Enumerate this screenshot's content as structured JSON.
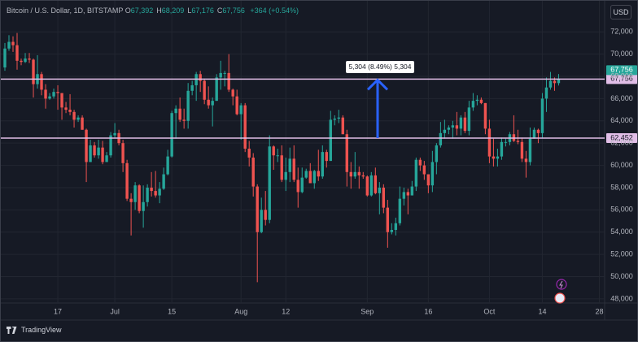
{
  "header": {
    "symbol": "Bitcoin / U.S. Dollar, 1D, BITSTAMP",
    "ohlc": [
      {
        "key": "O",
        "value": "67,392"
      },
      {
        "key": "H",
        "value": "68,209"
      },
      {
        "key": "L",
        "value": "67,176"
      },
      {
        "key": "C",
        "value": "67,756"
      }
    ],
    "change": "+364 (+0.54%)",
    "currency": "USD"
  },
  "footer": {
    "brand": "TradingView"
  },
  "chart_data": {
    "type": "candlestick",
    "up_color": "#26a69a",
    "down_color": "#ef5350",
    "grid": true,
    "xlim": [
      -1,
      147.3
    ],
    "ylim": [
      47630,
      74790
    ],
    "xticks": [
      {
        "value": 13,
        "label": "17"
      },
      {
        "value": 27,
        "label": "Jul"
      },
      {
        "value": 41,
        "label": "15"
      },
      {
        "value": 58,
        "label": "Aug"
      },
      {
        "value": 69,
        "label": "12"
      },
      {
        "value": 89,
        "label": "Sep"
      },
      {
        "value": 104,
        "label": "16"
      },
      {
        "value": 119,
        "label": "Oct"
      },
      {
        "value": 132,
        "label": "14"
      },
      {
        "value": 146,
        "label": "28"
      }
    ],
    "yticks": [
      {
        "value": 48000,
        "label": "48,000"
      },
      {
        "value": 50000,
        "label": "50,000"
      },
      {
        "value": 52000,
        "label": "52,000"
      },
      {
        "value": 54000,
        "label": "54,000"
      },
      {
        "value": 56000,
        "label": "56,000"
      },
      {
        "value": 58000,
        "label": "58,000"
      },
      {
        "value": 60000,
        "label": "60,000"
      },
      {
        "value": 62000,
        "label": "62,000"
      },
      {
        "value": 64000,
        "label": "64,000"
      },
      {
        "value": 66000,
        "label": "66,000"
      },
      {
        "value": 68000,
        "label": "68,000"
      },
      {
        "value": 70000,
        "label": "70,000"
      },
      {
        "value": 72000,
        "label": "72,000"
      }
    ],
    "open": [
      68800,
      70500,
      71100,
      70800,
      69400,
      69300,
      69600,
      69500,
      67300,
      68200,
      66800,
      66000,
      66200,
      66600,
      66500,
      65200,
      65000,
      64800,
      64100,
      64300,
      63200,
      60300,
      61800,
      60900,
      61600,
      60300,
      60900,
      62700,
      62900,
      62000,
      60200,
      57000,
      56700,
      58200,
      55900,
      56700,
      58000,
      57700,
      57300,
      57900,
      59200,
      60800,
      64700,
      65100,
      64100,
      64000,
      66700,
      67200,
      68200,
      67600,
      65900,
      65400,
      65800,
      67900,
      68300,
      68300,
      66800,
      66200,
      64600,
      65400,
      61500,
      60700,
      58100,
      54000,
      56000,
      55100,
      61700,
      60900,
      60900,
      58700,
      59400,
      60600,
      58700,
      57600,
      58900,
      59500,
      58400,
      59500,
      59000,
      61200,
      60400,
      64100,
      64200,
      64300,
      62800,
      59400,
      59000,
      59400,
      59100,
      59000,
      57300,
      59100,
      57500,
      58000,
      56200,
      54000,
      54200,
      54800,
      57000,
      57600,
      57300,
      58100,
      60500,
      60000,
      59200,
      58200,
      60300,
      61800,
      62900,
      63200,
      63400,
      63600,
      63300,
      64300,
      63100,
      65200,
      65800,
      65900,
      65600,
      63300,
      60800,
      60600,
      60800,
      62100,
      62100,
      62800,
      62200,
      62100,
      60600,
      60300,
      62400,
      63200,
      62900,
      66000,
      67000,
      67600,
      67392
    ],
    "high": [
      71000,
      71700,
      71600,
      71900,
      69600,
      70100,
      70100,
      69600,
      69900,
      68400,
      67300,
      66500,
      66900,
      67200,
      66500,
      65700,
      66400,
      65000,
      64500,
      64500,
      63300,
      62300,
      62100,
      62300,
      62200,
      61200,
      63000,
      63800,
      63200,
      62300,
      60500,
      57500,
      58500,
      58300,
      58200,
      58300,
      59400,
      59500,
      58500,
      59800,
      61400,
      64900,
      65400,
      66100,
      65100,
      67400,
      67600,
      68400,
      68500,
      67800,
      67100,
      66100,
      68200,
      69400,
      68500,
      70000,
      66900,
      66800,
      65600,
      65600,
      62200,
      61100,
      58300,
      57100,
      57700,
      62700,
      61800,
      61500,
      61800,
      60700,
      61600,
      61800,
      59800,
      59800,
      59700,
      60200,
      59600,
      61400,
      61800,
      61400,
      64900,
      64500,
      65000,
      64500,
      63200,
      60300,
      61200,
      59900,
      59400,
      59100,
      59400,
      59800,
      58500,
      58300,
      56900,
      54800,
      55300,
      58100,
      58000,
      57900,
      58600,
      60700,
      60700,
      60400,
      59200,
      61300,
      62000,
      63900,
      64100,
      63600,
      64000,
      64800,
      64500,
      64800,
      65800,
      66500,
      66300,
      66100,
      65600,
      64100,
      62400,
      61500,
      62500,
      62400,
      63000,
      64500,
      63200,
      62500,
      61300,
      63400,
      63400,
      63300,
      66500,
      67900,
      68400,
      67900,
      68209
    ],
    "low": [
      68500,
      70300,
      70200,
      68600,
      69000,
      69200,
      69200,
      66100,
      66900,
      66300,
      65100,
      65900,
      66000,
      65000,
      64100,
      64700,
      64500,
      63400,
      63900,
      63200,
      58500,
      60300,
      60700,
      60600,
      60100,
      60300,
      60700,
      62500,
      61800,
      59400,
      56800,
      53700,
      56000,
      55700,
      54400,
      56300,
      57200,
      57100,
      56600,
      57800,
      59100,
      60700,
      62400,
      63900,
      63300,
      63300,
      66300,
      65800,
      66600,
      65500,
      65100,
      63500,
      65800,
      66800,
      67100,
      66600,
      65400,
      64500,
      62300,
      61200,
      59900,
      57200,
      49500,
      53900,
      54600,
      54800,
      59600,
      60300,
      58500,
      57700,
      58500,
      58500,
      56200,
      57500,
      58800,
      58400,
      57900,
      58600,
      58800,
      59800,
      60400,
      63600,
      63800,
      62800,
      58100,
      57900,
      58800,
      57900,
      58800,
      57200,
      57200,
      57400,
      55600,
      55700,
      52600,
      53800,
      53700,
      54600,
      56400,
      55600,
      57300,
      57700,
      59500,
      58700,
      57500,
      57600,
      59200,
      61600,
      62400,
      62800,
      62400,
      62700,
      62700,
      62900,
      62700,
      64900,
      65400,
      65500,
      62800,
      60200,
      59900,
      59900,
      60500,
      61700,
      61800,
      62100,
      61900,
      60300,
      58900,
      60000,
      62400,
      62000,
      62500,
      64800,
      66800,
      66700,
      67176
    ],
    "close": [
      70500,
      71100,
      70800,
      69400,
      69300,
      69600,
      69500,
      67300,
      68200,
      66800,
      66000,
      66200,
      66600,
      66500,
      65200,
      65000,
      64800,
      64100,
      64300,
      63200,
      60300,
      61800,
      60900,
      61600,
      60300,
      60900,
      62700,
      62900,
      62000,
      60200,
      57000,
      56700,
      58200,
      55900,
      56700,
      58000,
      57700,
      57300,
      57900,
      59200,
      60800,
      64700,
      65100,
      64100,
      64000,
      66700,
      67200,
      68200,
      67600,
      65900,
      65400,
      65800,
      67900,
      68300,
      68300,
      66800,
      66200,
      64600,
      65400,
      61500,
      60700,
      58100,
      54000,
      56000,
      55100,
      61700,
      60900,
      60900,
      58700,
      59400,
      60600,
      58700,
      57600,
      58900,
      59500,
      58400,
      59500,
      59000,
      61200,
      60400,
      64100,
      64200,
      64300,
      62800,
      59400,
      59000,
      59400,
      59100,
      59000,
      57300,
      59100,
      57500,
      58000,
      56200,
      54000,
      54200,
      54800,
      57000,
      57600,
      57300,
      58100,
      60500,
      60000,
      59200,
      58200,
      60300,
      61800,
      62900,
      63200,
      63400,
      63600,
      63300,
      64300,
      63100,
      65200,
      65800,
      65900,
      65600,
      63300,
      60800,
      60600,
      60800,
      62100,
      62100,
      62800,
      62200,
      62100,
      60600,
      60300,
      62400,
      63200,
      62900,
      66000,
      67000,
      67600,
      67392,
      67756
    ],
    "hline_color": "#e1bee7",
    "hlines": [
      {
        "value": 67756,
        "label": "67,756"
      },
      {
        "value": 62452,
        "label": "62,452"
      }
    ],
    "last_price": {
      "value": 67756,
      "label": "67,756"
    },
    "arrow_color": "#2962ff",
    "annotation": "5,304 (8.49%) 5,304"
  }
}
